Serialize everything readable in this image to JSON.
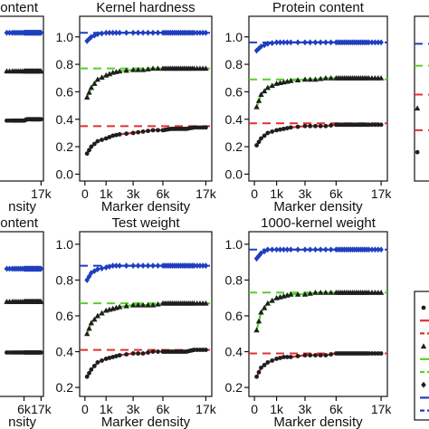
{
  "chart_data": [
    {
      "type": "line",
      "title": "ontent",
      "xlabel": "nsity",
      "ylabel": "",
      "x_ticks": [
        "17k"
      ],
      "ylim": [
        -0.05,
        1.15
      ],
      "series": [
        {
          "marker": "diamond",
          "color": "#1f3fbf",
          "x": [
            2,
            4,
            6,
            8,
            10,
            12,
            14,
            16,
            17
          ],
          "values": [
            1.03,
            1.03,
            1.03,
            1.03,
            1.03,
            1.03,
            1.03,
            1.03,
            1.03
          ]
        },
        {
          "marker": "triangle",
          "color": "#1e1e1e",
          "x": [
            2,
            4,
            6,
            8,
            10,
            12,
            14,
            16,
            17
          ],
          "values": [
            0.75,
            0.75,
            0.75,
            0.75,
            0.75,
            0.75,
            0.75,
            0.75,
            0.75
          ]
        },
        {
          "marker": "circle",
          "color": "#1e1e1e",
          "x": [
            2,
            4,
            6,
            8,
            10,
            12,
            14,
            16,
            17
          ],
          "values": [
            0.39,
            0.39,
            0.39,
            0.4,
            0.4,
            0.4,
            0.4,
            0.4,
            0.4
          ]
        }
      ],
      "reference_lines": [
        1.03,
        0.75,
        0.39
      ]
    },
    {
      "type": "line",
      "title": "Kernel hardness",
      "xlabel": "Marker density",
      "ylabel": "",
      "x_ticks": [
        "0",
        "1k",
        "3k",
        "6k",
        "17k"
      ],
      "y_ticks": [
        "0.0",
        "0.2",
        "0.4",
        "0.6",
        "0.8",
        "1.0"
      ],
      "ylim": [
        -0.05,
        1.15
      ],
      "series": [
        {
          "marker": "diamond",
          "color": "#1f3fbf",
          "x": [
            0.1,
            0.3,
            0.6,
            1,
            1.5,
            2,
            3,
            4,
            5,
            6,
            8,
            10,
            12,
            14,
            17
          ],
          "values": [
            0.97,
            1.0,
            1.02,
            1.03,
            1.03,
            1.03,
            1.03,
            1.03,
            1.03,
            1.03,
            1.03,
            1.03,
            1.03,
            1.03,
            1.03
          ]
        },
        {
          "marker": "triangle",
          "color": "#1e1e1e",
          "x": [
            0.1,
            0.3,
            0.6,
            1,
            1.5,
            2,
            3,
            4,
            5,
            6,
            8,
            10,
            12,
            14,
            17
          ],
          "values": [
            0.56,
            0.63,
            0.69,
            0.72,
            0.74,
            0.75,
            0.76,
            0.76,
            0.77,
            0.77,
            0.77,
            0.77,
            0.77,
            0.77,
            0.77
          ]
        },
        {
          "marker": "circle",
          "color": "#1e1e1e",
          "x": [
            0.1,
            0.3,
            0.6,
            1,
            1.5,
            2,
            3,
            4,
            5,
            6,
            8,
            10,
            12,
            14,
            17
          ],
          "values": [
            0.15,
            0.2,
            0.24,
            0.26,
            0.28,
            0.29,
            0.3,
            0.31,
            0.32,
            0.32,
            0.33,
            0.33,
            0.33,
            0.34,
            0.34
          ]
        }
      ],
      "reference_lines": [
        1.03,
        0.77,
        0.35
      ]
    },
    {
      "type": "line",
      "title": "Protein content",
      "xlabel": "Marker density",
      "ylabel": "",
      "x_ticks": [
        "0",
        "1k",
        "3k",
        "6k",
        "17k"
      ],
      "y_ticks": [
        "0.0",
        "0.2",
        "0.4",
        "0.6",
        "0.8",
        "1.0"
      ],
      "ylim": [
        -0.05,
        1.15
      ],
      "series": [
        {
          "marker": "diamond",
          "color": "#1f3fbf",
          "x": [
            0.1,
            0.3,
            0.6,
            1,
            1.5,
            2,
            3,
            4,
            5,
            6,
            8,
            10,
            12,
            14,
            17
          ],
          "values": [
            0.9,
            0.93,
            0.95,
            0.96,
            0.96,
            0.96,
            0.96,
            0.96,
            0.96,
            0.96,
            0.96,
            0.96,
            0.96,
            0.96,
            0.96
          ]
        },
        {
          "marker": "triangle",
          "color": "#1e1e1e",
          "x": [
            0.1,
            0.3,
            0.6,
            1,
            1.5,
            2,
            3,
            4,
            5,
            6,
            8,
            10,
            12,
            14,
            17
          ],
          "values": [
            0.49,
            0.58,
            0.63,
            0.66,
            0.67,
            0.68,
            0.69,
            0.69,
            0.7,
            0.7,
            0.7,
            0.7,
            0.7,
            0.7,
            0.7
          ]
        },
        {
          "marker": "circle",
          "color": "#1e1e1e",
          "x": [
            0.1,
            0.3,
            0.6,
            1,
            1.5,
            2,
            3,
            4,
            5,
            6,
            8,
            10,
            12,
            14,
            17
          ],
          "values": [
            0.21,
            0.26,
            0.3,
            0.32,
            0.33,
            0.34,
            0.35,
            0.35,
            0.35,
            0.36,
            0.36,
            0.36,
            0.36,
            0.36,
            0.36
          ]
        }
      ],
      "reference_lines": [
        0.96,
        0.69,
        0.37
      ]
    },
    {
      "type": "line",
      "title": "",
      "xlabel": "",
      "ylabel": "",
      "x_ticks": [],
      "ylim": [
        -0.05,
        1.15
      ],
      "series": [
        {
          "marker": "triangle",
          "color": "#1e1e1e",
          "x": [
            0.5
          ],
          "values": [
            0.48
          ]
        },
        {
          "marker": "circle",
          "color": "#1e1e1e",
          "x": [
            0.5
          ],
          "values": [
            0.16
          ]
        }
      ],
      "reference_lines": [
        0.95,
        0.79,
        0.58,
        0.32
      ]
    },
    {
      "type": "line",
      "title": "ontent",
      "xlabel": "nsity",
      "ylabel": "",
      "x_ticks": [
        "6k",
        "17k"
      ],
      "ylim": [
        -0.05,
        1.15
      ],
      "series": [
        {
          "marker": "diamond",
          "color": "#1f3fbf",
          "x": [
            2,
            4,
            6,
            8,
            10,
            12,
            14,
            16,
            17
          ],
          "values": [
            0.88,
            0.88,
            0.88,
            0.88,
            0.88,
            0.88,
            0.88,
            0.88,
            0.88
          ]
        },
        {
          "marker": "triangle",
          "color": "#1e1e1e",
          "x": [
            2,
            4,
            6,
            8,
            10,
            12,
            14,
            16,
            17
          ],
          "values": [
            0.64,
            0.64,
            0.64,
            0.64,
            0.64,
            0.64,
            0.64,
            0.64,
            0.64
          ]
        },
        {
          "marker": "circle",
          "color": "#1e1e1e",
          "x": [
            2,
            4,
            6,
            8,
            10,
            12,
            14,
            16,
            17
          ],
          "values": [
            0.27,
            0.27,
            0.27,
            0.27,
            0.27,
            0.27,
            0.27,
            0.27,
            0.27
          ]
        }
      ],
      "reference_lines": [
        0.88,
        0.64,
        0.27
      ]
    },
    {
      "type": "line",
      "title": "Test weight",
      "xlabel": "Marker density",
      "ylabel": "",
      "x_ticks": [
        "0",
        "1k",
        "3k",
        "6k",
        "17k"
      ],
      "y_ticks": [
        "0.2",
        "0.4",
        "0.6",
        "0.8",
        "1.0"
      ],
      "ylim": [
        0.15,
        1.07
      ],
      "series": [
        {
          "marker": "diamond",
          "color": "#1f3fbf",
          "x": [
            0.1,
            0.3,
            0.6,
            1,
            1.5,
            2,
            3,
            4,
            5,
            6,
            8,
            10,
            12,
            14,
            17
          ],
          "values": [
            0.8,
            0.84,
            0.86,
            0.87,
            0.88,
            0.88,
            0.88,
            0.88,
            0.88,
            0.88,
            0.88,
            0.88,
            0.88,
            0.88,
            0.88
          ]
        },
        {
          "marker": "triangle",
          "color": "#1e1e1e",
          "x": [
            0.1,
            0.3,
            0.6,
            1,
            1.5,
            2,
            3,
            4,
            5,
            6,
            8,
            10,
            12,
            14,
            17
          ],
          "values": [
            0.5,
            0.56,
            0.6,
            0.63,
            0.64,
            0.65,
            0.66,
            0.66,
            0.66,
            0.67,
            0.67,
            0.67,
            0.67,
            0.67,
            0.67
          ]
        },
        {
          "marker": "circle",
          "color": "#1e1e1e",
          "x": [
            0.1,
            0.3,
            0.6,
            1,
            1.5,
            2,
            3,
            4,
            5,
            6,
            8,
            10,
            12,
            14,
            17
          ],
          "values": [
            0.26,
            0.3,
            0.34,
            0.36,
            0.37,
            0.38,
            0.39,
            0.39,
            0.4,
            0.4,
            0.4,
            0.4,
            0.4,
            0.41,
            0.41
          ]
        }
      ],
      "reference_lines": [
        0.88,
        0.67,
        0.41
      ]
    },
    {
      "type": "line",
      "title": "1000-kernel weight",
      "xlabel": "Marker density",
      "ylabel": "",
      "x_ticks": [
        "0",
        "1k",
        "3k",
        "6k",
        "17k"
      ],
      "y_ticks": [
        "0.2",
        "0.4",
        "0.6",
        "0.8",
        "1.0"
      ],
      "ylim": [
        0.15,
        1.07
      ],
      "series": [
        {
          "marker": "diamond",
          "color": "#1f3fbf",
          "x": [
            0.1,
            0.3,
            0.6,
            1,
            1.5,
            2,
            3,
            4,
            5,
            6,
            8,
            10,
            12,
            14,
            17
          ],
          "values": [
            0.92,
            0.95,
            0.97,
            0.97,
            0.97,
            0.97,
            0.97,
            0.97,
            0.97,
            0.97,
            0.97,
            0.97,
            0.97,
            0.97,
            0.97
          ]
        },
        {
          "marker": "triangle",
          "color": "#1e1e1e",
          "x": [
            0.1,
            0.3,
            0.6,
            1,
            1.5,
            2,
            3,
            4,
            5,
            6,
            8,
            10,
            12,
            14,
            17
          ],
          "values": [
            0.52,
            0.62,
            0.67,
            0.7,
            0.71,
            0.72,
            0.72,
            0.73,
            0.73,
            0.73,
            0.73,
            0.73,
            0.73,
            0.73,
            0.73
          ]
        },
        {
          "marker": "circle",
          "color": "#1e1e1e",
          "x": [
            0.1,
            0.3,
            0.6,
            1,
            1.5,
            2,
            3,
            4,
            5,
            6,
            8,
            10,
            12,
            14,
            17
          ],
          "values": [
            0.26,
            0.31,
            0.34,
            0.36,
            0.37,
            0.37,
            0.38,
            0.38,
            0.38,
            0.39,
            0.39,
            0.39,
            0.39,
            0.39,
            0.39
          ]
        }
      ],
      "reference_lines": [
        0.97,
        0.73,
        0.39
      ]
    }
  ],
  "colors": {
    "blue": "#1f3fbf",
    "green": "#55d12a",
    "red": "#e03030",
    "black": "#1e1e1e"
  },
  "legend_markers": [
    "circle",
    "red-line",
    "red-dash",
    "triangle",
    "green-line",
    "green-dash",
    "diamond",
    "blue-line",
    "blue-dash"
  ]
}
